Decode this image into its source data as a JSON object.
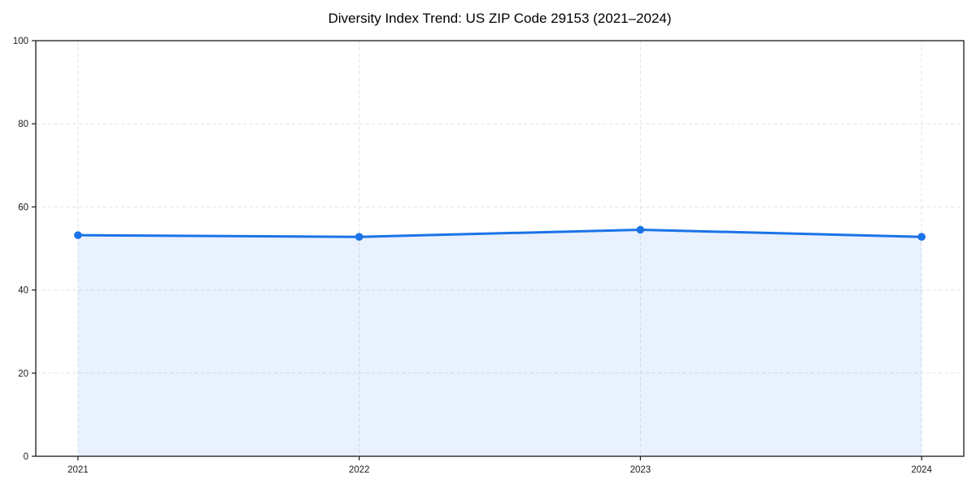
{
  "chart_data": {
    "type": "area",
    "title": "Diversity Index Trend: US ZIP Code 29153 (2021–2024)",
    "categories": [
      "2021",
      "2022",
      "2023",
      "2024"
    ],
    "x": [
      2021,
      2022,
      2023,
      2024
    ],
    "series": [
      {
        "name": "Diversity Index",
        "values": [
          53.2,
          52.8,
          54.5,
          52.8
        ]
      }
    ],
    "xlabel": "",
    "ylabel": "",
    "ylim": [
      0,
      100
    ],
    "yticks": [
      0,
      20,
      40,
      60,
      80,
      100
    ],
    "x_margin_frac": 0.05,
    "grid": {
      "show": true,
      "style": "dashed",
      "axis": "both"
    },
    "legend": "none",
    "colors": {
      "line": "#1a73e8",
      "marker": "#1a73e8",
      "fill": "#1a73e8",
      "fill_opacity": 0.1,
      "grid": "#e3e3e3",
      "spine": "#1a1a1a",
      "tick": "#1a1a1a",
      "tick_label": "#1a1a1a",
      "title": "#000000",
      "background": "#ffffff"
    },
    "style": {
      "line_width": 3,
      "marker_radius": 4.8,
      "tick_length": 5,
      "tick_label_size": 11.5,
      "grid_dash": "4.5 3"
    }
  }
}
